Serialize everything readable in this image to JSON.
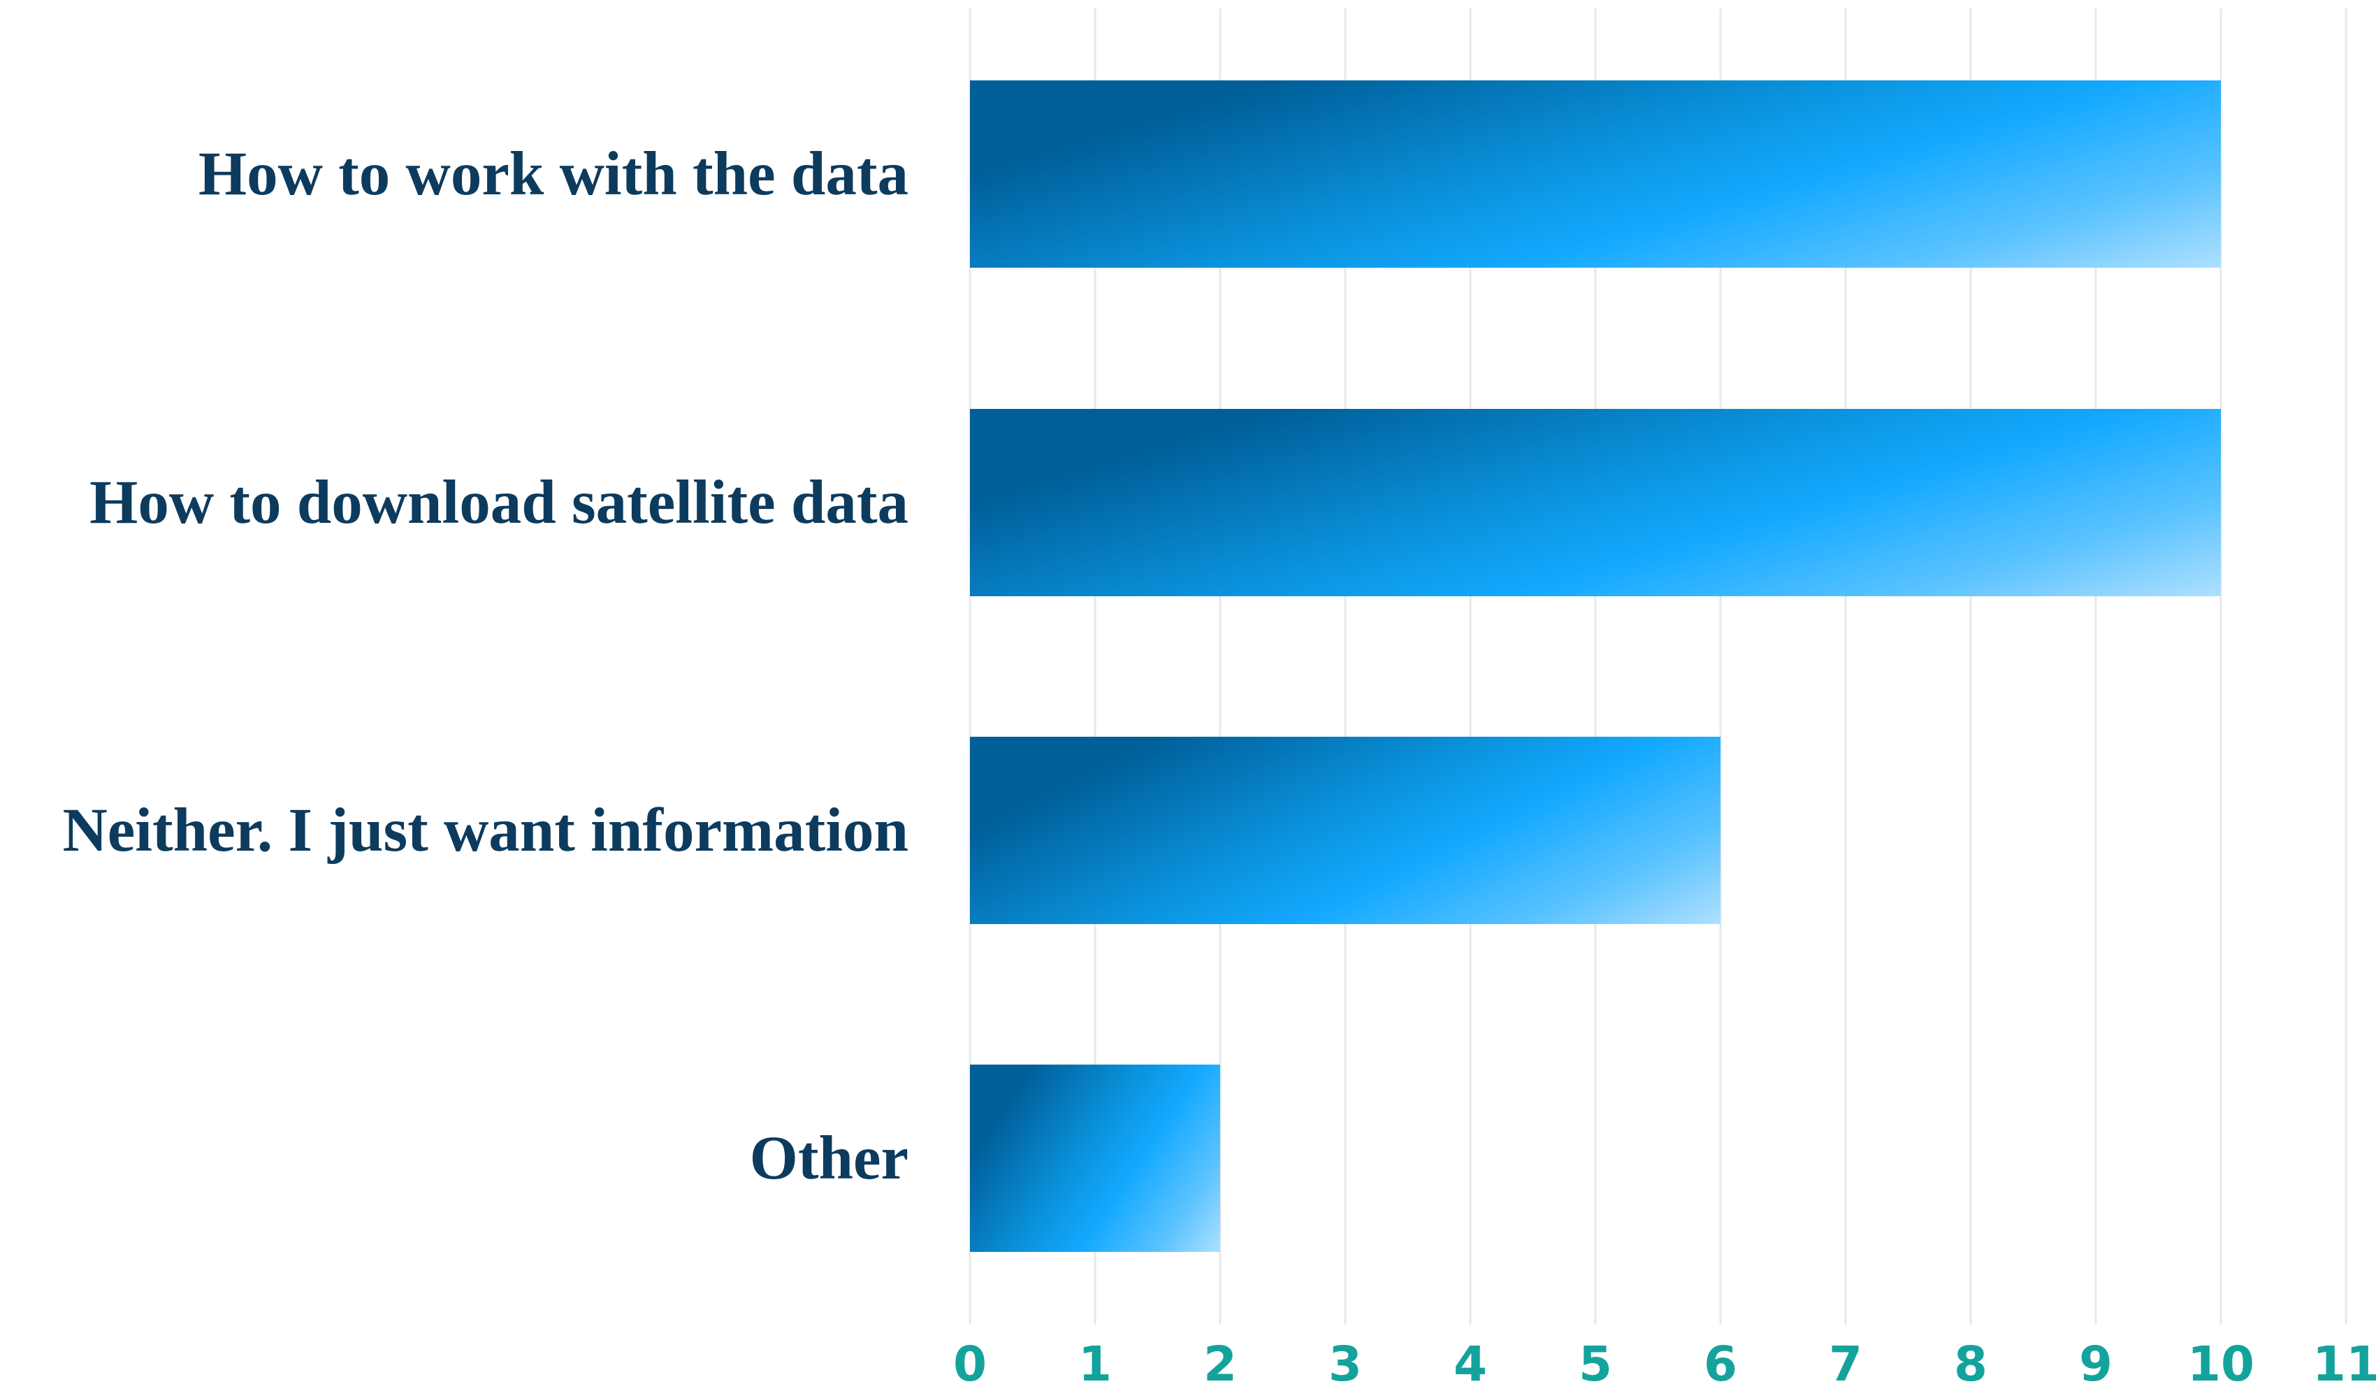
{
  "chart_data": {
    "type": "bar",
    "orientation": "horizontal",
    "categories": [
      "How to work with the data",
      "How to download satellite data",
      "Neither. I just want information",
      "Other"
    ],
    "values": [
      10,
      10,
      6,
      2
    ],
    "title": "",
    "xlabel": "",
    "ylabel": "",
    "xlim": [
      0,
      11
    ],
    "xticks": [
      "0",
      "1",
      "2",
      "3",
      "4",
      "5",
      "6",
      "7",
      "8",
      "9",
      "10",
      "11"
    ],
    "grid": "vertical",
    "legend": "none"
  },
  "colors": {
    "category_label": "#0d3b5e",
    "tick_label": "#13a39c",
    "gridline": "#e6e9ec",
    "bar_gradient": [
      "#005f99",
      "#0a92dc",
      "#14a9ff",
      "#5cc3ff",
      "#aee0ff"
    ]
  }
}
